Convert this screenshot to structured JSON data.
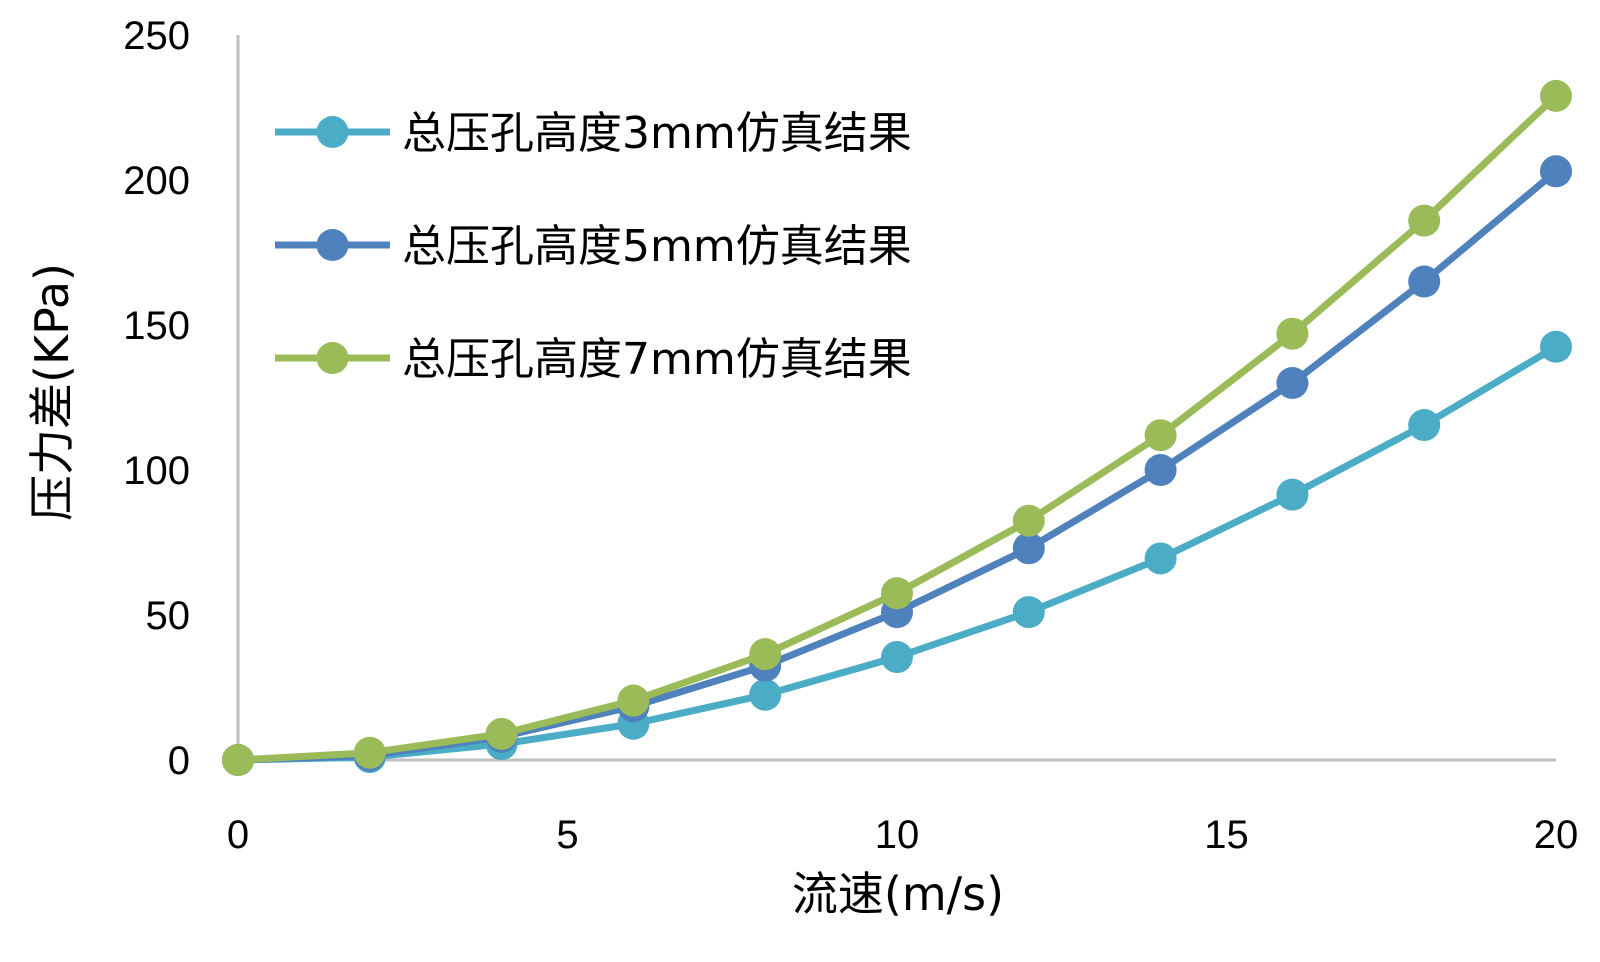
{
  "chart_data": {
    "type": "line",
    "xlabel": "流速(m/s)",
    "ylabel": "压力差(KPa)",
    "xlim": [
      0,
      20
    ],
    "ylim": [
      0,
      250
    ],
    "xticks": [
      "0",
      "5",
      "10",
      "15",
      "20"
    ],
    "yticks": [
      "0",
      "50",
      "100",
      "150",
      "200",
      "250"
    ],
    "grid": false,
    "legend_position": "top-left",
    "x": [
      0,
      2,
      4,
      6,
      8,
      10,
      12,
      14,
      16,
      18,
      20
    ],
    "series": [
      {
        "name": "总压孔高度3mm仿真结果",
        "color": "#4bacc6",
        "values": [
          0,
          1,
          5.5,
          12.5,
          22.5,
          35.5,
          51,
          69.5,
          91.5,
          115.5,
          142.5
        ]
      },
      {
        "name": "总压孔高度5mm仿真结果",
        "color": "#4f81bd",
        "values": [
          0,
          1.5,
          8,
          18.5,
          32.5,
          51,
          73,
          100,
          130,
          165,
          203
        ]
      },
      {
        "name": "总压孔高度7mm仿真结果",
        "color": "#9bbb59",
        "values": [
          0,
          2.5,
          9,
          20.5,
          36.5,
          57.5,
          82.5,
          112,
          147,
          186,
          229
        ]
      }
    ]
  }
}
